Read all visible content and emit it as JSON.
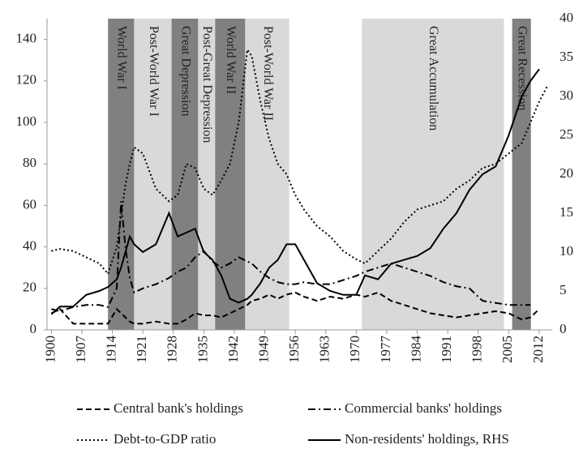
{
  "chart_data": {
    "type": "line",
    "x": [
      1900,
      1902,
      1905,
      1908,
      1911,
      1913,
      1915,
      1916,
      1917,
      1918,
      1919,
      1921,
      1924,
      1927,
      1929,
      1931,
      1933,
      1935,
      1937,
      1939,
      1941,
      1943,
      1945,
      1946,
      1948,
      1950,
      1952,
      1954,
      1956,
      1958,
      1961,
      1964,
      1967,
      1970,
      1972,
      1975,
      1978,
      1981,
      1984,
      1987,
      1990,
      1993,
      1996,
      1999,
      2002,
      2005,
      2008,
      2010,
      2012,
      2014
    ],
    "xlim": [
      1899,
      2015
    ],
    "xticks": [
      1900,
      1907,
      1914,
      1921,
      1928,
      1935,
      1942,
      1949,
      1956,
      1963,
      1970,
      1977,
      1984,
      1991,
      1998,
      2005,
      2012
    ],
    "ylim": [
      0,
      150
    ],
    "yticks": [
      0,
      20,
      40,
      60,
      80,
      100,
      120,
      140
    ],
    "y2lim": [
      0,
      40
    ],
    "y2ticks": [
      0,
      5,
      10,
      15,
      20,
      25,
      30,
      35,
      40
    ],
    "periods": [
      {
        "label": "World War I",
        "start": 1913,
        "end": 1919,
        "shade": "#808080"
      },
      {
        "label": "Post-World War I",
        "start": 1919,
        "end": 1927.6,
        "shade": "#d9d9d9"
      },
      {
        "label": "Great Depression",
        "start": 1927.6,
        "end": 1933.7,
        "shade": "#808080"
      },
      {
        "label": "Post-Great Depression",
        "start": 1933.7,
        "end": 1937.6,
        "shade": "#d9d9d9"
      },
      {
        "label": "World War II",
        "start": 1937.6,
        "end": 1944.5,
        "shade": "#808080"
      },
      {
        "label": "Post-World War II",
        "start": 1944.5,
        "end": 1954.6,
        "shade": "#d9d9d9"
      },
      {
        "label": "Great Accumulation",
        "start": 1971.3,
        "end": 2003.9,
        "shade": "#d9d9d9"
      },
      {
        "label": "Great Recession",
        "start": 2005.8,
        "end": 2010.1,
        "shade": "#808080"
      }
    ],
    "series": [
      {
        "name": "Central bank's holdings",
        "color": "#000000",
        "dash": "7,4",
        "values": [
          8,
          10,
          3,
          3,
          3,
          3,
          10,
          8,
          6,
          4,
          3,
          3,
          4,
          3,
          3,
          5,
          8,
          7,
          7,
          6,
          8,
          10,
          12,
          14,
          15,
          17,
          15,
          17,
          18,
          16,
          14,
          16,
          15,
          17,
          16,
          18,
          14,
          12,
          10,
          8,
          7,
          6,
          7,
          8,
          9,
          8,
          5,
          6,
          10,
          null
        ]
      },
      {
        "name": "Commercial banks' holdings",
        "color": "#000000",
        "dash": "9,4,2,4",
        "values": [
          10,
          9,
          11,
          12,
          12,
          11,
          20,
          62,
          40,
          25,
          18,
          20,
          22,
          25,
          28,
          30,
          35,
          38,
          33,
          30,
          32,
          35,
          33,
          32,
          28,
          25,
          23,
          22,
          22,
          23,
          22,
          22,
          24,
          26,
          28,
          30,
          32,
          30,
          28,
          26,
          23,
          21,
          20,
          14,
          13,
          12,
          12,
          12,
          null,
          null
        ]
      },
      {
        "name": "Debt-to-GDP ratio",
        "color": "#000000",
        "dash": "2,3",
        "values": [
          38,
          39,
          38,
          35,
          32,
          27,
          40,
          55,
          70,
          80,
          88,
          85,
          68,
          62,
          65,
          80,
          78,
          68,
          65,
          72,
          80,
          100,
          135,
          132,
          110,
          92,
          80,
          75,
          65,
          58,
          50,
          45,
          38,
          34,
          32,
          38,
          44,
          52,
          58,
          60,
          62,
          68,
          72,
          78,
          80,
          85,
          90,
          100,
          110,
          118
        ]
      },
      {
        "name": "Non-residents' holdings, RHS",
        "color": "#000000",
        "dash": "none",
        "axis": "y2",
        "values": [
          2,
          3,
          3,
          4.5,
          5,
          5.5,
          6.5,
          8,
          10,
          12,
          11,
          10,
          11,
          15,
          12,
          12.5,
          13,
          10,
          9,
          7,
          4,
          3.5,
          4,
          4.5,
          6,
          8,
          9,
          11,
          11,
          9,
          6,
          5,
          4.5,
          4.5,
          7,
          6.5,
          8.5,
          9,
          9.5,
          10.5,
          13,
          15,
          18,
          20,
          21,
          25,
          30,
          32,
          33.5,
          null
        ]
      }
    ]
  }
}
